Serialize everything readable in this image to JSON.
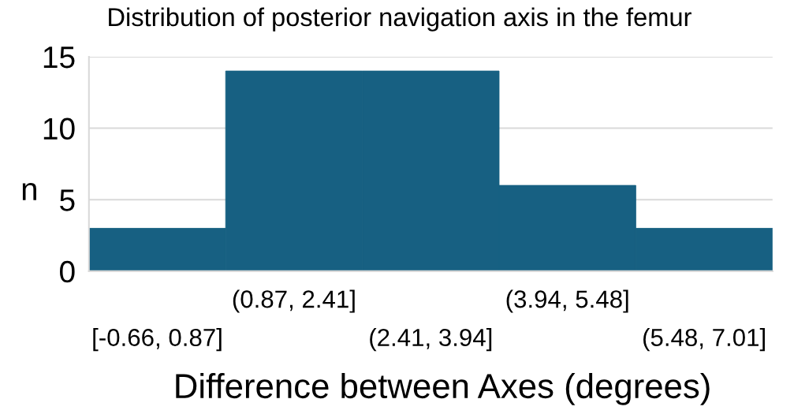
{
  "chart_data": {
    "type": "bar",
    "title": "Distribution of posterior navigation axis in the femur",
    "xlabel": "Difference between Axes (degrees)",
    "ylabel": "n",
    "categories": [
      "[-0.66, 0.87]",
      "(0.87, 2.41]",
      "(2.41, 3.94]",
      "(3.94, 5.48]",
      "(5.48, 7.01]"
    ],
    "values": [
      3,
      14,
      14,
      6,
      3
    ],
    "color": "#176082",
    "ylim": [
      0,
      15
    ],
    "yticks": [
      0,
      5,
      10,
      15
    ],
    "grid": "y"
  }
}
